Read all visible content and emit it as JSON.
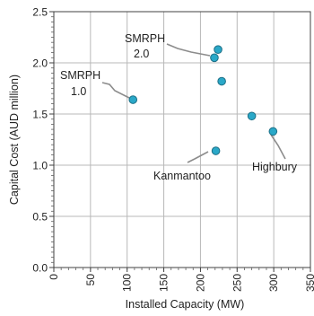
{
  "chart_data": {
    "type": "scatter",
    "xlabel": "Installed Capacity (MW)",
    "ylabel": "Capital Cost (AUD million)",
    "xlim": [
      0,
      350
    ],
    "ylim": [
      0,
      2.5
    ],
    "x_ticks": [
      "0",
      "50",
      "100",
      "150",
      "200",
      "250",
      "300",
      "350"
    ],
    "y_ticks": [
      "0.0",
      "0.5",
      "1.0",
      "1.5",
      "2.0",
      "2.5"
    ],
    "grid": true,
    "marker_color": "#2aa8c8",
    "points": [
      {
        "x": 108,
        "y": 1.64
      },
      {
        "x": 219,
        "y": 2.05
      },
      {
        "x": 224,
        "y": 2.13
      },
      {
        "x": 229,
        "y": 1.82
      },
      {
        "x": 221,
        "y": 1.14
      },
      {
        "x": 270,
        "y": 1.48
      },
      {
        "x": 299,
        "y": 1.33
      }
    ],
    "annotations": [
      {
        "lines": [
          "SMRPH",
          "2.0"
        ],
        "point": 1
      },
      {
        "lines": [
          "SMRPH",
          "1.0"
        ],
        "point": 0
      },
      {
        "lines": [
          "Kanmantoo"
        ],
        "point": 4
      },
      {
        "lines": [
          "Highbury"
        ],
        "point": 6
      }
    ]
  }
}
